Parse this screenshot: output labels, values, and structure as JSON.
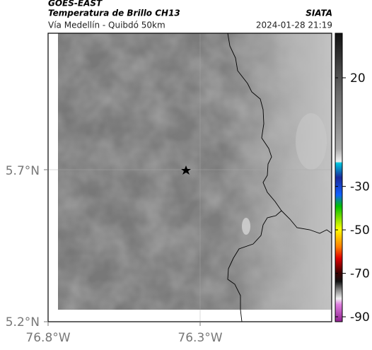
{
  "header": {
    "source": "GOES-EAST",
    "title": "Temperatura de Brillo CH13",
    "brand": "SIATA",
    "subtitle": "Vía Medellín - Quibdó 50km",
    "timestamp": "2024-01-28 21:19"
  },
  "map": {
    "y_labels": [
      "5.7°N",
      "5.2°N"
    ],
    "x_labels": [
      "76.8°W",
      "76.3°W"
    ]
  },
  "colorbar": {
    "ticks": [
      20,
      -30,
      -50,
      -70,
      -90
    ]
  }
}
